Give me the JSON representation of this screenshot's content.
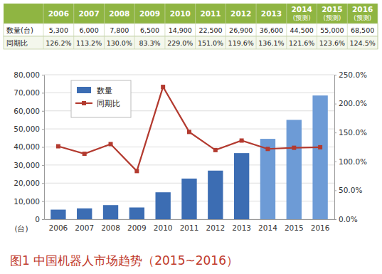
{
  "table": {
    "columns": [
      [
        "2006"
      ],
      [
        "2007"
      ],
      [
        "2008"
      ],
      [
        "2009"
      ],
      [
        "2010"
      ],
      [
        "2011"
      ],
      [
        "2012"
      ],
      [
        "2013"
      ],
      [
        "2014",
        "(预测)"
      ],
      [
        "2015",
        "(预测)"
      ],
      [
        "2016",
        "(预测)"
      ]
    ],
    "rows": [
      {
        "label": "数量(台)",
        "cells": [
          "5,300",
          "6,000",
          "7,800",
          "6,500",
          "14,900",
          "22,500",
          "26,900",
          "36,600",
          "44,500",
          "55,000",
          "68,500"
        ]
      },
      {
        "label": "同期比",
        "cells": [
          "126.2%",
          "113.2%",
          "130.0%",
          "83.3%",
          "229.0%",
          "151.0%",
          "119.6%",
          "136.1%",
          "121.6%",
          "123.6%",
          "124.5%"
        ]
      }
    ]
  },
  "chart_data": {
    "type": "bar",
    "title": "图1 中国机器人市场趋势（2015~2016）",
    "y_label": "(台)",
    "categories": [
      "2006",
      "2007",
      "2008",
      "2009",
      "2010",
      "2011",
      "2012",
      "2013",
      "2014",
      "2015",
      "2016"
    ],
    "series": [
      {
        "name": "数量",
        "type": "bar",
        "colors": [
          "#3c6db3",
          "#3c6db3",
          "#3c6db3",
          "#3c6db3",
          "#3c6db3",
          "#3c6db3",
          "#3c6db3",
          "#3c6db3",
          "#6d9bd6",
          "#6d9bd6",
          "#6d9bd6"
        ],
        "values": [
          5300,
          6000,
          7800,
          6500,
          14900,
          22500,
          26900,
          36600,
          44500,
          55000,
          68500
        ]
      },
      {
        "name": "同期比",
        "type": "line",
        "axis": "y2",
        "color": "#b33a2f",
        "marker": "square",
        "values": [
          126.2,
          113.2,
          130.0,
          83.3,
          229.0,
          151.0,
          119.6,
          136.1,
          121.6,
          123.6,
          124.5
        ]
      }
    ],
    "ylim": [
      0,
      80000
    ],
    "yticks": [
      {
        "value": 0,
        "label": "0"
      },
      {
        "value": 10000,
        "label": "10,000"
      },
      {
        "value": 20000,
        "label": "20,000"
      },
      {
        "value": 30000,
        "label": "30,000"
      },
      {
        "value": 40000,
        "label": "40,000"
      },
      {
        "value": 50000,
        "label": "50,000"
      },
      {
        "value": 60000,
        "label": "60,000"
      },
      {
        "value": 70000,
        "label": "70,000"
      },
      {
        "value": 80000,
        "label": "80,000"
      }
    ],
    "y2lim": [
      0,
      250
    ],
    "y2ticks": [
      {
        "value": 0,
        "label": "0.0%"
      },
      {
        "value": 50,
        "label": "50.0%"
      },
      {
        "value": 100,
        "label": "100.0%"
      },
      {
        "value": 150,
        "label": "150.0%"
      },
      {
        "value": 200,
        "label": "200.0%"
      },
      {
        "value": 250,
        "label": "250.0%"
      }
    ],
    "grid": true,
    "legend": "top-left"
  }
}
